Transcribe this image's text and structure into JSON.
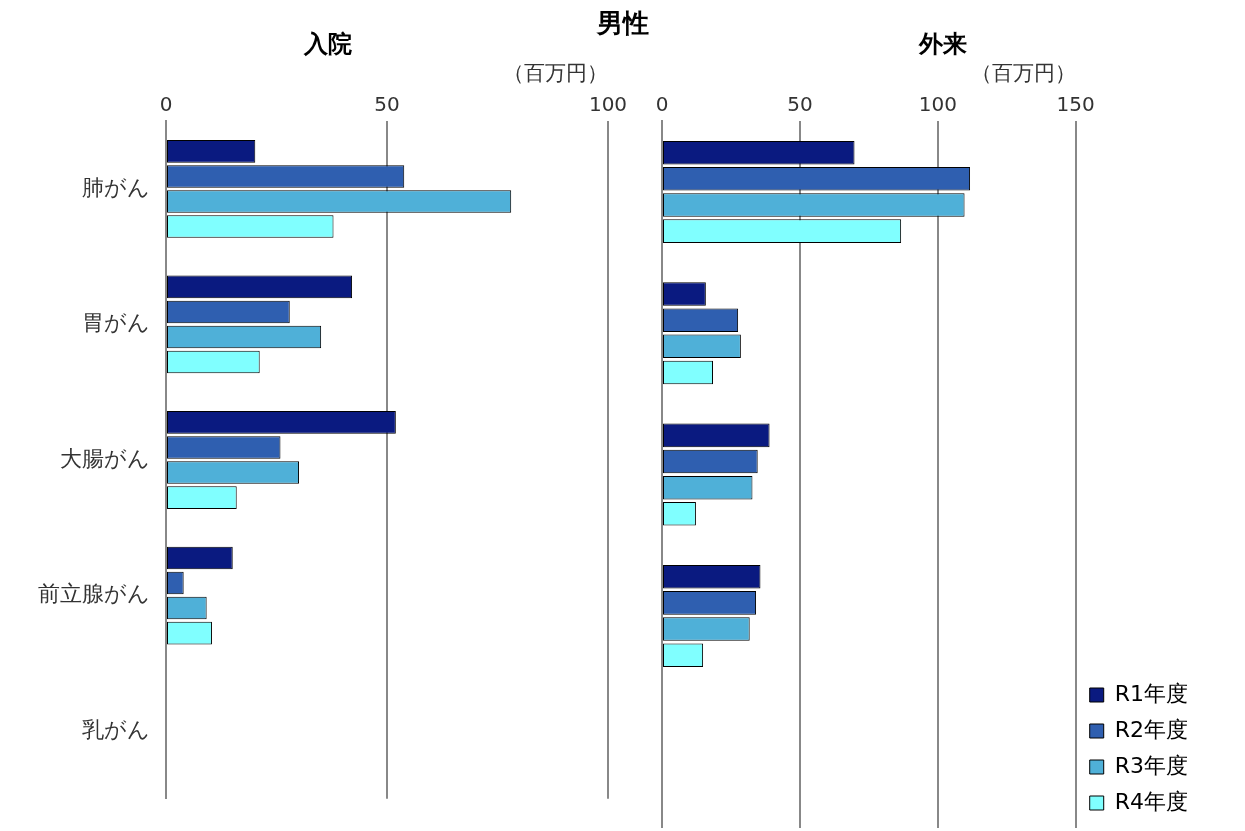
{
  "chart_data": [
    {
      "type": "bar",
      "orientation": "horizontal",
      "title": "男性",
      "subtitle": "入院",
      "xlabel": "（百万円）",
      "categories": [
        "肺がん",
        "胃がん",
        "大腸がん",
        "前立腺がん",
        "乳がん"
      ],
      "xlim": [
        0,
        100
      ],
      "xticks": [
        0,
        50,
        100
      ],
      "grid": "x",
      "legend": false,
      "series": [
        {
          "color": "#0a1a80",
          "values": [
            20.2,
            42.1,
            52.0,
            15.1,
            null
          ]
        },
        {
          "color": "#2f5fb0",
          "values": [
            53.9,
            28.0,
            25.9,
            4.0,
            null
          ]
        },
        {
          "color": "#4fb0d8",
          "values": [
            78.1,
            35.1,
            30.1,
            9.2,
            null
          ]
        },
        {
          "color": "#80ffff",
          "values": [
            37.9,
            21.2,
            16.0,
            10.4,
            null
          ]
        }
      ]
    },
    {
      "type": "bar",
      "orientation": "horizontal",
      "subtitle": "外来",
      "xlabel": "（百万円）",
      "categories": [
        null,
        null,
        null,
        null,
        null
      ],
      "xlim": [
        0,
        150
      ],
      "xticks": [
        0,
        50,
        100,
        150
      ],
      "grid": "x",
      "legend": "bottom right",
      "tick_labels": "x",
      "series": [
        {
          "name": "R1年度",
          "color": "#0a1a80",
          "values": [
            69.8,
            15.9,
            39.0,
            35.7,
            null
          ]
        },
        {
          "name": "R2年度",
          "color": "#2f5fb0",
          "values": [
            111.7,
            27.6,
            34.7,
            34.1,
            null
          ]
        },
        {
          "name": "R3年度",
          "color": "#4fb0d8",
          "values": [
            109.7,
            28.6,
            32.8,
            31.8,
            null
          ]
        },
        {
          "name": "R4年度",
          "color": "#80ffff",
          "values": [
            86.7,
            18.5,
            12.3,
            14.9,
            null
          ]
        }
      ]
    }
  ]
}
